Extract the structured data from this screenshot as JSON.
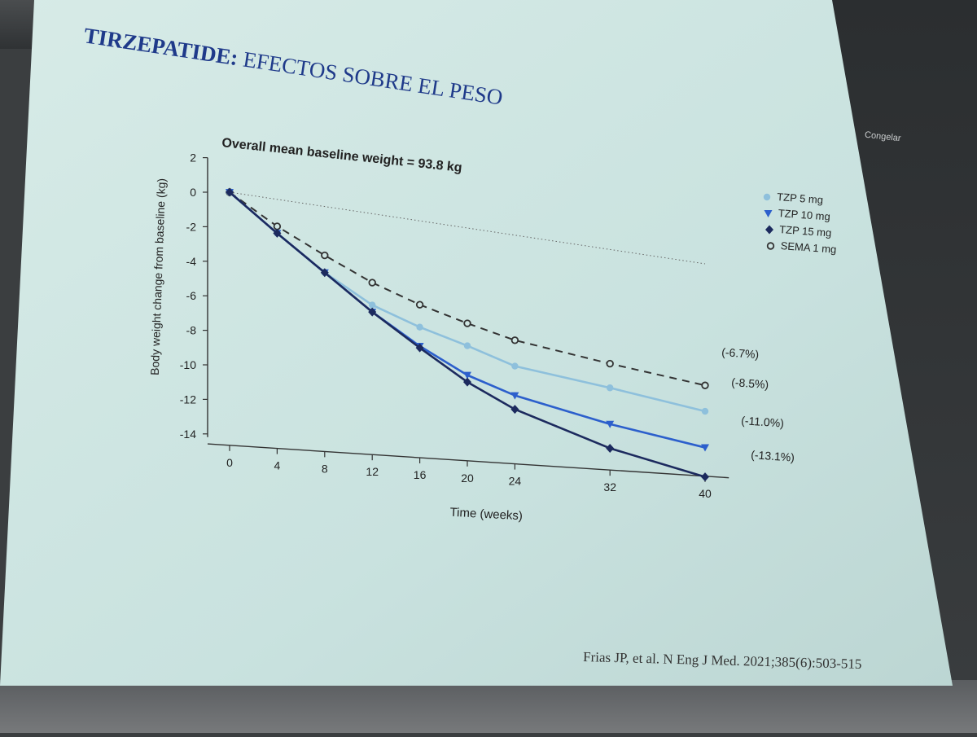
{
  "slide": {
    "title_bold": "TIRZEPATIDE:",
    "title_rest": " EFECTOS SOBRE EL PESO",
    "citation": "Frias JP, et al. N Eng J Med. 2021;385(6):503-515",
    "side_label": "Congelar"
  },
  "colors": {
    "slide_bg": "#cfe6e3",
    "title": "#1f3a8a",
    "tzp5": "#8ec0dc",
    "tzp10": "#2c5fcc",
    "tzp15": "#1c2a5e",
    "sema1": "#333333"
  },
  "chart_data": {
    "type": "line",
    "title": "Overall mean baseline weight = 93.8 kg",
    "xlabel": "Time (weeks)",
    "ylabel": "Body weight change from baseline (kg)",
    "xlim": [
      -4,
      42
    ],
    "ylim": [
      -14,
      2
    ],
    "x_ticks": [
      0,
      4,
      8,
      12,
      16,
      20,
      24,
      32,
      40
    ],
    "y_ticks": [
      2,
      0,
      -2,
      -4,
      -6,
      -8,
      -10,
      -12,
      -14
    ],
    "reference_line": {
      "y": 0,
      "x_end": 40,
      "style": "dotted"
    },
    "legend_position": "top-right",
    "series": [
      {
        "name": "TZP 5 mg",
        "marker": "circle-filled",
        "line": "solid",
        "x": [
          0,
          4,
          8,
          12,
          16,
          20,
          24,
          32,
          40
        ],
        "y": [
          0,
          -2.2,
          -4.3,
          -6.0,
          -7.1,
          -8.0,
          -9.0,
          -9.9,
          -10.9
        ],
        "end_label": "(-8.5%)"
      },
      {
        "name": "TZP 10 mg",
        "marker": "triangle-down",
        "line": "solid",
        "x": [
          0,
          4,
          8,
          12,
          16,
          20,
          24,
          32,
          40
        ],
        "y": [
          0,
          -2.2,
          -4.3,
          -6.4,
          -8.2,
          -9.7,
          -10.7,
          -12.0,
          -13.0
        ],
        "end_label": "(-11.0%)"
      },
      {
        "name": "TZP 15 mg",
        "marker": "diamond",
        "line": "solid",
        "x": [
          0,
          4,
          8,
          12,
          16,
          20,
          24,
          32,
          40
        ],
        "y": [
          0,
          -2.2,
          -4.3,
          -6.4,
          -8.3,
          -10.1,
          -11.5,
          -13.4,
          -14.7
        ],
        "end_label": "(-13.1%)"
      },
      {
        "name": "SEMA 1 mg",
        "marker": "circle-open",
        "line": "dashed",
        "x": [
          0,
          4,
          8,
          12,
          16,
          20,
          24,
          32,
          40
        ],
        "y": [
          0,
          -1.8,
          -3.3,
          -4.7,
          -5.8,
          -6.7,
          -7.5,
          -8.5,
          -9.4
        ],
        "end_label": "(-6.7%)"
      }
    ]
  }
}
